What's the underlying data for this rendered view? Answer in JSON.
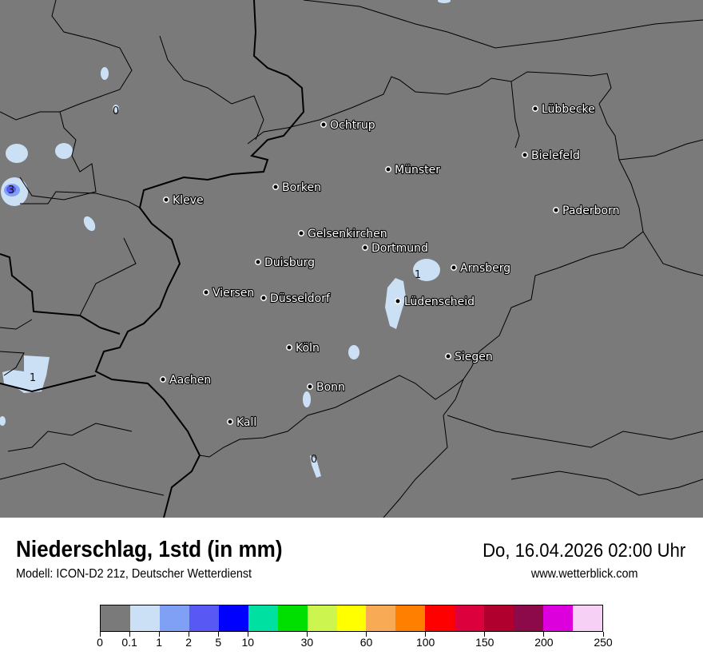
{
  "map": {
    "background_color": "#7a7a7a",
    "cities": [
      "Lübbecke",
      "Ochtrup",
      "Bielefeld",
      "Münster",
      "Borken",
      "Kleve",
      "Paderborn",
      "Gelsenkirchen",
      "Dortmund",
      "Duisburg",
      "Arnsberg",
      "Viersen",
      "Düsseldorf",
      "Lüdenscheid",
      "Köln",
      "Siegen",
      "Aachen",
      "Bonn",
      "Kall"
    ],
    "contour_labels": [
      "0",
      "3",
      "1",
      "1",
      "0"
    ]
  },
  "header": {
    "title": "Niederschlag, 1std (in mm)",
    "subtitle": "Modell: ICON-D2 21z, Deutscher Wetterdienst",
    "datetime": "Do, 16.04.2026 02:00 Uhr",
    "website": "www.wetterblick.com"
  },
  "legend": {
    "colors": [
      "#7a7a7a",
      "#cce0f5",
      "#80a0f5",
      "#5858f5",
      "#0000ff",
      "#00e0a0",
      "#00e000",
      "#ccf550",
      "#ffff00",
      "#f8aa55",
      "#ff7f00",
      "#ff0000",
      "#dc003c",
      "#b0002e",
      "#8c0a4a",
      "#dc00dc",
      "#f7d0f5"
    ],
    "tick_labels": [
      "0",
      "0.1",
      "1",
      "2",
      "5",
      "10",
      "30",
      "60",
      "100",
      "150",
      "200",
      "250"
    ]
  }
}
